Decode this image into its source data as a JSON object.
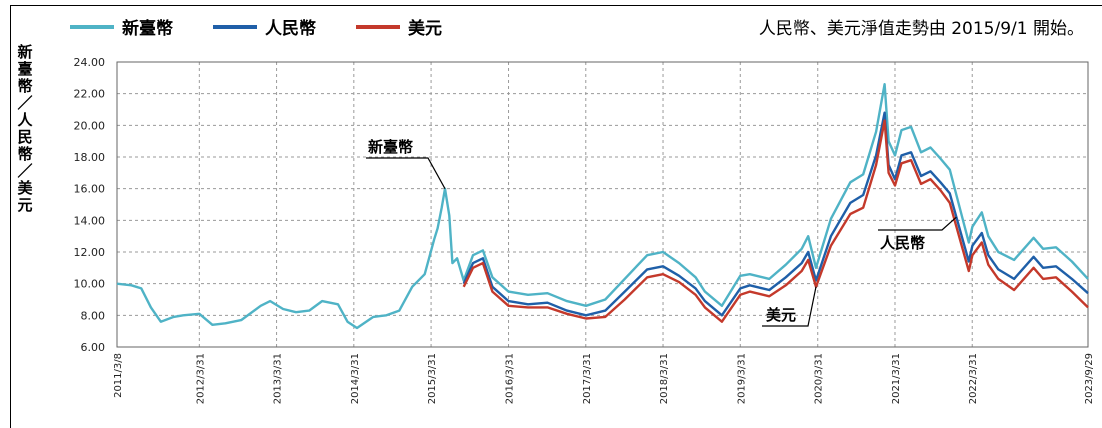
{
  "legend": [
    {
      "name": "新臺幣",
      "color": "#4fb3c6"
    },
    {
      "name": "人民幣",
      "color": "#1f5fa8"
    },
    {
      "name": "美元",
      "color": "#c4392b"
    }
  ],
  "note": "人民幣、美元淨值走勢由 2015/9/1 開始。",
  "ylabel_chars": [
    "新",
    "臺",
    "幣",
    "／",
    "人",
    "民",
    "幣",
    "／",
    "美",
    "元"
  ],
  "chart_data": {
    "type": "line",
    "ylim": [
      6.0,
      24.0
    ],
    "yticks": [
      "6.00",
      "8.00",
      "10.00",
      "12.00",
      "14.00",
      "16.00",
      "18.00",
      "20.00",
      "22.00",
      "24.00"
    ],
    "xlim": [
      "2011/3/8",
      "2023/9/29"
    ],
    "xticks": [
      "2011/3/8",
      "2012/3/31",
      "2013/3/31",
      "2014/3/31",
      "2015/3/31",
      "2016/3/31",
      "2017/3/31",
      "2018/3/31",
      "2019/3/31",
      "2020/3/31",
      "2021/3/31",
      "2022/3/31",
      "2023/9/29"
    ],
    "grid": true,
    "series": [
      {
        "name": "新臺幣",
        "color": "#4fb3c6",
        "points": [
          [
            "2011/3/8",
            10.0
          ],
          [
            "2011/5/15",
            9.9
          ],
          [
            "2011/7/1",
            9.7
          ],
          [
            "2011/8/15",
            8.5
          ],
          [
            "2011/10/1",
            7.6
          ],
          [
            "2011/12/1",
            7.9
          ],
          [
            "2012/1/15",
            8.0
          ],
          [
            "2012/3/31",
            8.1
          ],
          [
            "2012/6/1",
            7.4
          ],
          [
            "2012/8/1",
            7.5
          ],
          [
            "2012/10/15",
            7.7
          ],
          [
            "2013/1/15",
            8.6
          ],
          [
            "2013/3/1",
            8.9
          ],
          [
            "2013/5/1",
            8.4
          ],
          [
            "2013/7/1",
            8.2
          ],
          [
            "2013/9/1",
            8.3
          ],
          [
            "2013/11/1",
            8.9
          ],
          [
            "2014/1/15",
            8.7
          ],
          [
            "2014/3/1",
            7.6
          ],
          [
            "2014/4/15",
            7.2
          ],
          [
            "2014/7/1",
            7.9
          ],
          [
            "2014/9/1",
            8.0
          ],
          [
            "2014/11/1",
            8.3
          ],
          [
            "2015/1/1",
            9.8
          ],
          [
            "2015/3/1",
            10.6
          ],
          [
            "2015/4/15",
            12.8
          ],
          [
            "2015/5/1",
            13.5
          ],
          [
            "2015/5/20",
            14.8
          ],
          [
            "2015/6/5",
            16.0
          ],
          [
            "2015/6/25",
            14.3
          ],
          [
            "2015/7/10",
            11.3
          ],
          [
            "2015/8/1",
            11.6
          ],
          [
            "2015/9/1",
            10.2
          ],
          [
            "2015/10/15",
            11.8
          ],
          [
            "2015/12/1",
            12.1
          ],
          [
            "2016/1/15",
            10.4
          ],
          [
            "2016/3/31",
            9.5
          ],
          [
            "2016/7/1",
            9.3
          ],
          [
            "2016/10/1",
            9.4
          ],
          [
            "2017/1/1",
            8.9
          ],
          [
            "2017/4/1",
            8.6
          ],
          [
            "2017/7/1",
            9.0
          ],
          [
            "2017/10/1",
            10.3
          ],
          [
            "2018/1/15",
            11.8
          ],
          [
            "2018/3/31",
            12.0
          ],
          [
            "2018/6/15",
            11.3
          ],
          [
            "2018/9/1",
            10.4
          ],
          [
            "2018/10/15",
            9.5
          ],
          [
            "2019/1/3",
            8.6
          ],
          [
            "2019/3/31",
            10.5
          ],
          [
            "2019/5/15",
            10.6
          ],
          [
            "2019/8/15",
            10.3
          ],
          [
            "2019/11/1",
            11.2
          ],
          [
            "2020/1/15",
            12.2
          ],
          [
            "2020/2/15",
            13.0
          ],
          [
            "2020/3/23",
            11.0
          ],
          [
            "2020/6/1",
            14.1
          ],
          [
            "2020/9/1",
            16.4
          ],
          [
            "2020/11/1",
            16.9
          ],
          [
            "2021/1/1",
            19.6
          ],
          [
            "2021/2/10",
            22.6
          ],
          [
            "2021/3/1",
            19.0
          ],
          [
            "2021/3/31",
            18.1
          ],
          [
            "2021/5/1",
            19.7
          ],
          [
            "2021/6/15",
            19.9
          ],
          [
            "2021/8/1",
            18.3
          ],
          [
            "2021/9/15",
            18.6
          ],
          [
            "2021/11/1",
            17.9
          ],
          [
            "2021/12/15",
            17.2
          ],
          [
            "2022/1/15",
            15.6
          ],
          [
            "2022/3/15",
            12.6
          ],
          [
            "2022/4/1",
            13.6
          ],
          [
            "2022/5/15",
            14.5
          ],
          [
            "2022/6/15",
            13.0
          ],
          [
            "2022/8/1",
            12.0
          ],
          [
            "2022/10/15",
            11.5
          ],
          [
            "2023/1/15",
            12.9
          ],
          [
            "2023/3/1",
            12.2
          ],
          [
            "2023/5/1",
            12.3
          ],
          [
            "2023/7/15",
            11.4
          ],
          [
            "2023/9/29",
            10.3
          ]
        ]
      },
      {
        "name": "人民幣",
        "color": "#1f5fa8",
        "points": [
          [
            "2015/9/1",
            10.0
          ],
          [
            "2015/10/15",
            11.3
          ],
          [
            "2015/12/1",
            11.6
          ],
          [
            "2016/1/15",
            9.8
          ],
          [
            "2016/3/31",
            8.9
          ],
          [
            "2016/7/1",
            8.7
          ],
          [
            "2016/10/1",
            8.8
          ],
          [
            "2017/1/1",
            8.3
          ],
          [
            "2017/4/1",
            8.0
          ],
          [
            "2017/7/1",
            8.3
          ],
          [
            "2017/10/1",
            9.5
          ],
          [
            "2018/1/15",
            10.9
          ],
          [
            "2018/3/31",
            11.1
          ],
          [
            "2018/6/15",
            10.5
          ],
          [
            "2018/9/1",
            9.7
          ],
          [
            "2018/10/15",
            8.9
          ],
          [
            "2019/1/3",
            8.0
          ],
          [
            "2019/3/31",
            9.7
          ],
          [
            "2019/5/15",
            9.9
          ],
          [
            "2019/8/15",
            9.6
          ],
          [
            "2019/11/1",
            10.4
          ],
          [
            "2020/1/15",
            11.3
          ],
          [
            "2020/2/15",
            12.0
          ],
          [
            "2020/3/23",
            10.2
          ],
          [
            "2020/6/1",
            13.0
          ],
          [
            "2020/9/1",
            15.1
          ],
          [
            "2020/11/1",
            15.6
          ],
          [
            "2021/1/1",
            18.1
          ],
          [
            "2021/2/10",
            20.8
          ],
          [
            "2021/3/1",
            17.5
          ],
          [
            "2021/3/31",
            16.6
          ],
          [
            "2021/5/1",
            18.1
          ],
          [
            "2021/6/15",
            18.3
          ],
          [
            "2021/8/1",
            16.8
          ],
          [
            "2021/9/15",
            17.1
          ],
          [
            "2021/11/1",
            16.4
          ],
          [
            "2021/12/15",
            15.7
          ],
          [
            "2022/1/15",
            14.2
          ],
          [
            "2022/3/15",
            11.4
          ],
          [
            "2022/4/1",
            12.4
          ],
          [
            "2022/5/15",
            13.2
          ],
          [
            "2022/6/15",
            11.8
          ],
          [
            "2022/8/1",
            10.9
          ],
          [
            "2022/10/15",
            10.3
          ],
          [
            "2023/1/15",
            11.7
          ],
          [
            "2023/3/1",
            11.0
          ],
          [
            "2023/5/1",
            11.1
          ],
          [
            "2023/7/15",
            10.3
          ],
          [
            "2023/9/29",
            9.4
          ]
        ]
      },
      {
        "name": "美元",
        "color": "#c4392b",
        "points": [
          [
            "2015/9/1",
            9.8
          ],
          [
            "2015/10/15",
            11.0
          ],
          [
            "2015/12/1",
            11.3
          ],
          [
            "2016/1/15",
            9.5
          ],
          [
            "2016/3/31",
            8.6
          ],
          [
            "2016/7/1",
            8.5
          ],
          [
            "2016/10/1",
            8.5
          ],
          [
            "2017/1/1",
            8.1
          ],
          [
            "2017/4/1",
            7.8
          ],
          [
            "2017/7/1",
            7.9
          ],
          [
            "2017/10/1",
            9.0
          ],
          [
            "2018/1/15",
            10.4
          ],
          [
            "2018/3/31",
            10.6
          ],
          [
            "2018/6/15",
            10.1
          ],
          [
            "2018/9/1",
            9.3
          ],
          [
            "2018/10/15",
            8.5
          ],
          [
            "2019/1/3",
            7.6
          ],
          [
            "2019/3/31",
            9.3
          ],
          [
            "2019/5/15",
            9.5
          ],
          [
            "2019/8/15",
            9.2
          ],
          [
            "2019/11/1",
            9.9
          ],
          [
            "2020/1/15",
            10.8
          ],
          [
            "2020/2/15",
            11.5
          ],
          [
            "2020/3/23",
            9.8
          ],
          [
            "2020/6/1",
            12.4
          ],
          [
            "2020/9/1",
            14.4
          ],
          [
            "2020/11/1",
            14.8
          ],
          [
            "2021/1/1",
            17.5
          ],
          [
            "2021/2/10",
            20.3
          ],
          [
            "2021/3/1",
            17.0
          ],
          [
            "2021/3/31",
            16.2
          ],
          [
            "2021/5/1",
            17.6
          ],
          [
            "2021/6/15",
            17.8
          ],
          [
            "2021/8/1",
            16.3
          ],
          [
            "2021/9/15",
            16.6
          ],
          [
            "2021/11/1",
            15.9
          ],
          [
            "2021/12/15",
            15.1
          ],
          [
            "2022/1/15",
            13.6
          ],
          [
            "2022/3/15",
            10.8
          ],
          [
            "2022/4/1",
            11.8
          ],
          [
            "2022/5/15",
            12.6
          ],
          [
            "2022/6/15",
            11.2
          ],
          [
            "2022/8/1",
            10.3
          ],
          [
            "2022/10/15",
            9.6
          ],
          [
            "2023/1/15",
            11.0
          ],
          [
            "2023/3/1",
            10.3
          ],
          [
            "2023/5/1",
            10.4
          ],
          [
            "2023/7/15",
            9.5
          ],
          [
            "2023/9/29",
            8.5
          ]
        ]
      }
    ],
    "annotations": [
      {
        "text": "新臺幣",
        "series": "新臺幣",
        "at": "2015/6/5"
      },
      {
        "text": "人民幣",
        "series": "人民幣",
        "at": "2022/1/15"
      },
      {
        "text": "美元",
        "series": "美元",
        "at": "2020/3/23"
      }
    ]
  }
}
